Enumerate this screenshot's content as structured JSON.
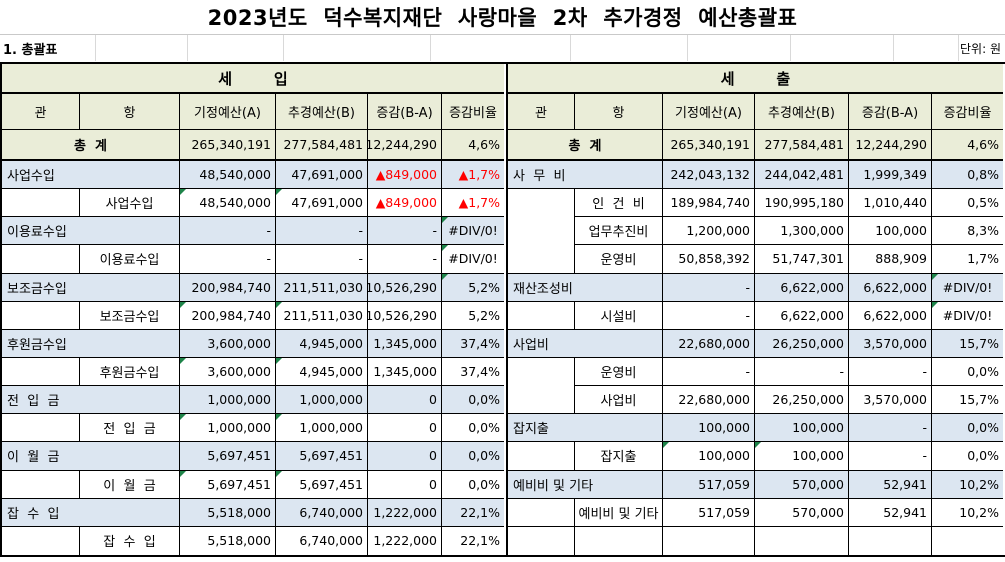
{
  "page": {
    "title": "2023년도  덕수복지재단  사랑마을  2차  추가경정  예산총괄표",
    "section_heading": "1. 총괄표",
    "unit_label": "단위: 원"
  },
  "colors": {
    "header_bg": "#eaedd8",
    "gwan_row_bg": "#dce6f1",
    "hang_row_bg": "#ffffff",
    "negative_text": "#ff0000",
    "error_marker": "#1e8449",
    "border": "#000000"
  },
  "tables": [
    {
      "id": "revenue",
      "section_label": "세        입",
      "columns": [
        "관",
        "항",
        "기정예산(A)",
        "추경예산(B)",
        "증감(B-A)",
        "증감비율"
      ],
      "total": {
        "label": "총  계",
        "values": [
          "265,340,191",
          "277,584,481",
          "12,244,290",
          "4,6%"
        ]
      },
      "rows": [
        {
          "type": "gwan",
          "label": "사업수입",
          "values": [
            "48,540,000",
            "47,691,000",
            "▲849,000",
            "▲1,7%"
          ],
          "red": [
            2,
            3
          ],
          "markers": []
        },
        {
          "type": "hang",
          "label": "사업수입",
          "gwan_span": 1,
          "values": [
            "48,540,000",
            "47,691,000",
            "▲849,000",
            "▲1,7%"
          ],
          "red": [
            2,
            3
          ],
          "markers": [
            0,
            1
          ]
        },
        {
          "type": "gwan",
          "label": "이용료수입",
          "values": [
            "-",
            "-",
            "-",
            "#DIV/0!"
          ],
          "red": [],
          "markers": [
            3
          ]
        },
        {
          "type": "hang",
          "label": "이용료수입",
          "gwan_span": 1,
          "values": [
            "-",
            "-",
            "-",
            "#DIV/0!"
          ],
          "red": [],
          "markers": [
            3
          ]
        },
        {
          "type": "gwan",
          "label": "보조금수입",
          "values": [
            "200,984,740",
            "211,511,030",
            "10,526,290",
            "5,2%"
          ],
          "red": [],
          "markers": [
            3
          ]
        },
        {
          "type": "hang",
          "label": "보조금수입",
          "gwan_span": 1,
          "values": [
            "200,984,740",
            "211,511,030",
            "10,526,290",
            "5,2%"
          ],
          "red": [],
          "markers": [
            0,
            1
          ]
        },
        {
          "type": "gwan",
          "label": "후원금수입",
          "values": [
            "3,600,000",
            "4,945,000",
            "1,345,000",
            "37,4%"
          ],
          "red": [],
          "markers": []
        },
        {
          "type": "hang",
          "label": "후원금수입",
          "gwan_span": 1,
          "values": [
            "3,600,000",
            "4,945,000",
            "1,345,000",
            "37,4%"
          ],
          "red": [],
          "markers": [
            0,
            1
          ]
        },
        {
          "type": "gwan",
          "label": "전  입  금",
          "values": [
            "1,000,000",
            "1,000,000",
            "0",
            "0,0%"
          ],
          "red": [],
          "markers": []
        },
        {
          "type": "hang",
          "label": "전  입  금",
          "gwan_span": 1,
          "values": [
            "1,000,000",
            "1,000,000",
            "0",
            "0,0%"
          ],
          "red": [],
          "markers": [
            0,
            1
          ]
        },
        {
          "type": "gwan",
          "label": "이  월  금",
          "values": [
            "5,697,451",
            "5,697,451",
            "0",
            "0,0%"
          ],
          "red": [],
          "markers": []
        },
        {
          "type": "hang",
          "label": "이  월  금",
          "gwan_span": 1,
          "values": [
            "5,697,451",
            "5,697,451",
            "0",
            "0,0%"
          ],
          "red": [],
          "markers": [
            0,
            1
          ]
        },
        {
          "type": "gwan",
          "label": "잡  수  입",
          "values": [
            "5,518,000",
            "6,740,000",
            "1,222,000",
            "22,1%"
          ],
          "red": [],
          "markers": []
        },
        {
          "type": "hang",
          "label": "잡  수  입",
          "gwan_span": 1,
          "values": [
            "5,518,000",
            "6,740,000",
            "1,222,000",
            "22,1%"
          ],
          "red": [],
          "markers": []
        }
      ]
    },
    {
      "id": "expenditure",
      "section_label": "세        출",
      "columns": [
        "관",
        "항",
        "기정예산(A)",
        "추경예산(B)",
        "증감(B-A)",
        "증감비율"
      ],
      "total": {
        "label": "총  계",
        "values": [
          "265,340,191",
          "277,584,481",
          "12,244,290",
          "4,6%"
        ]
      },
      "rows": [
        {
          "type": "gwan",
          "label": "사  무  비",
          "values": [
            "242,043,132",
            "244,042,481",
            "1,999,349",
            "0,8%"
          ],
          "red": [],
          "markers": []
        },
        {
          "type": "hang",
          "label": "인  건  비",
          "gwan_span": 3,
          "values": [
            "189,984,740",
            "190,995,180",
            "1,010,440",
            "0,5%"
          ],
          "red": [],
          "markers": []
        },
        {
          "type": "hang",
          "label": "업무추진비",
          "gwan_span": 0,
          "values": [
            "1,200,000",
            "1,300,000",
            "100,000",
            "8,3%"
          ],
          "red": [],
          "markers": []
        },
        {
          "type": "hang",
          "label": "운영비",
          "gwan_span": 0,
          "values": [
            "50,858,392",
            "51,747,301",
            "888,909",
            "1,7%"
          ],
          "red": [],
          "markers": []
        },
        {
          "type": "gwan",
          "label": "재산조성비",
          "values": [
            "-",
            "6,622,000",
            "6,622,000",
            "#DIV/0!"
          ],
          "red": [],
          "markers": [
            3
          ]
        },
        {
          "type": "hang",
          "label": "시설비",
          "gwan_span": 1,
          "values": [
            "-",
            "6,622,000",
            "6,622,000",
            "#DIV/0!"
          ],
          "red": [],
          "markers": [
            3
          ]
        },
        {
          "type": "gwan",
          "label": "사업비",
          "values": [
            "22,680,000",
            "26,250,000",
            "3,570,000",
            "15,7%"
          ],
          "red": [],
          "markers": []
        },
        {
          "type": "hang",
          "label": "운영비",
          "gwan_span": 2,
          "values": [
            "-",
            "-",
            "-",
            "0,0%"
          ],
          "red": [],
          "markers": []
        },
        {
          "type": "hang",
          "label": "사업비",
          "gwan_span": 0,
          "values": [
            "22,680,000",
            "26,250,000",
            "3,570,000",
            "15,7%"
          ],
          "red": [],
          "markers": []
        },
        {
          "type": "gwan",
          "label": "잡지출",
          "values": [
            "100,000",
            "100,000",
            "-",
            "0,0%"
          ],
          "red": [],
          "markers": []
        },
        {
          "type": "hang",
          "label": "잡지출",
          "gwan_span": 1,
          "values": [
            "100,000",
            "100,000",
            "-",
            "0,0%"
          ],
          "red": [],
          "markers": [
            0,
            1
          ]
        },
        {
          "type": "gwan",
          "label": "예비비 및 기타",
          "values": [
            "517,059",
            "570,000",
            "52,941",
            "10,2%"
          ],
          "red": [],
          "markers": []
        },
        {
          "type": "hang",
          "label": "예비비 및 기타",
          "gwan_span": 1,
          "values": [
            "517,059",
            "570,000",
            "52,941",
            "10,2%"
          ],
          "red": [],
          "markers": []
        },
        {
          "type": "empty",
          "label": "",
          "gwan_span": 1,
          "values": [
            "",
            "",
            "",
            ""
          ],
          "red": [],
          "markers": []
        }
      ]
    }
  ]
}
